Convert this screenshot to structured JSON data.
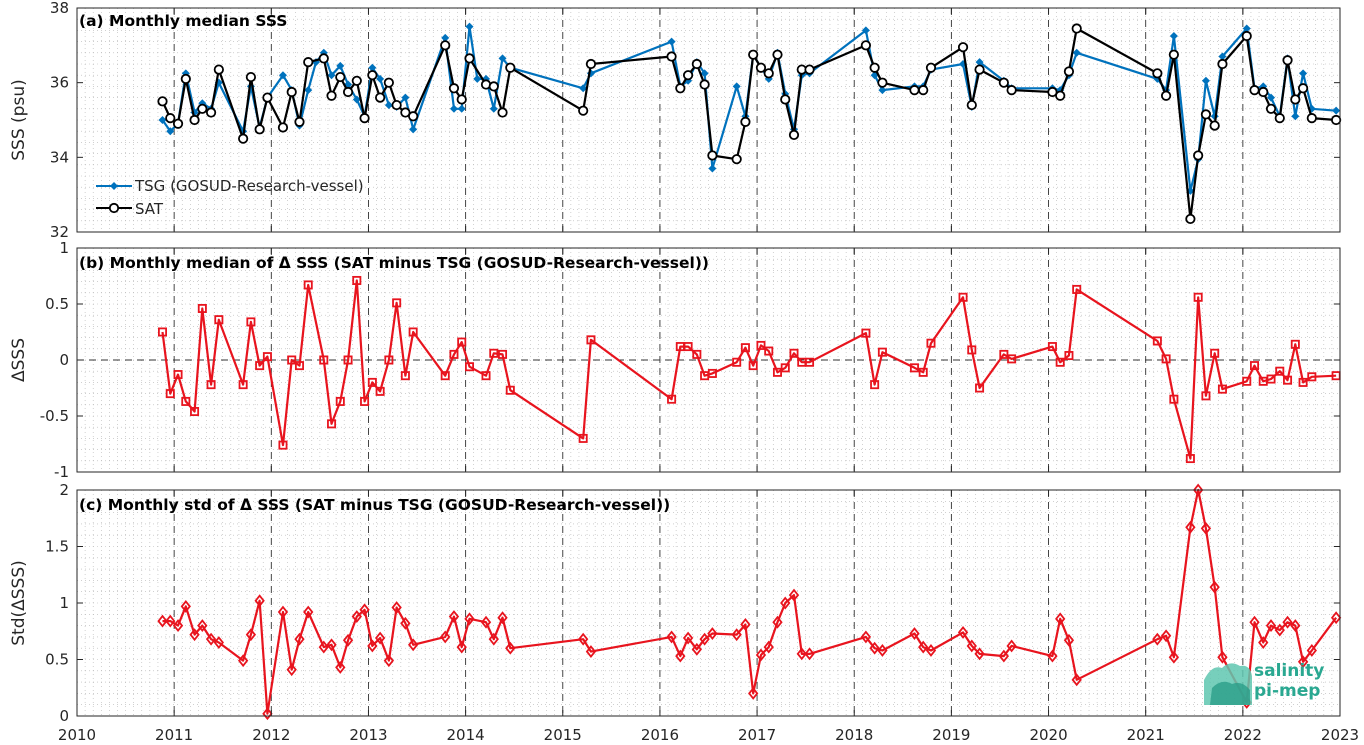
{
  "logo": {
    "line1": "salinity",
    "line2": "pi-mep"
  },
  "colors": {
    "tsg": "#0072bd",
    "sat": "#000000",
    "delta": "#e8141e",
    "grid": "#b4b4b4",
    "axis": "#262626"
  },
  "chart_data": [
    {
      "type": "line",
      "title": "(a) Monthly median SSS",
      "ylabel": "SSS (psu)",
      "xlim": [
        2010,
        2023
      ],
      "ylim": [
        32,
        38
      ],
      "yticks": [
        32,
        34,
        36,
        38
      ],
      "xticks": [
        2010,
        2011,
        2012,
        2013,
        2014,
        2015,
        2016,
        2017,
        2018,
        2019,
        2020,
        2021,
        2022,
        2023
      ],
      "legend_position": "lower-left",
      "series": [
        {
          "name": "TSG (GOSUD-Research-vessel)",
          "marker": "filled-diamond",
          "color": "#0072bd",
          "x": [
            2010.88,
            2010.96,
            2011.04,
            2011.12,
            2011.21,
            2011.29,
            2011.38,
            2011.46,
            2011.71,
            2011.79,
            2011.88,
            2011.96,
            2012.12,
            2012.21,
            2012.29,
            2012.38,
            2012.46,
            2012.54,
            2012.62,
            2012.71,
            2012.79,
            2012.88,
            2012.96,
            2013.04,
            2013.12,
            2013.21,
            2013.29,
            2013.38,
            2013.46,
            2013.79,
            2013.88,
            2013.96,
            2014.04,
            2014.12,
            2014.21,
            2014.29,
            2014.38,
            2014.46,
            2015.21,
            2015.29,
            2016.12,
            2016.21,
            2016.29,
            2016.38,
            2016.46,
            2016.54,
            2016.79,
            2016.88,
            2016.96,
            2017.04,
            2017.12,
            2017.21,
            2017.29,
            2017.38,
            2017.46,
            2017.54,
            2018.12,
            2018.21,
            2018.29,
            2018.62,
            2018.71,
            2018.79,
            2019.12,
            2019.21,
            2019.29,
            2019.54,
            2019.62,
            2020.04,
            2020.12,
            2020.21,
            2020.29,
            2021.12,
            2021.21,
            2021.29,
            2021.46,
            2021.54,
            2021.62,
            2021.71,
            2021.79,
            2022.04,
            2022.12,
            2022.21,
            2022.29,
            2022.38,
            2022.46,
            2022.54,
            2022.62,
            2022.71,
            2022.96
          ],
          "y": [
            35.0,
            34.7,
            34.9,
            36.25,
            35.2,
            35.45,
            35.3,
            36.0,
            34.7,
            35.9,
            34.8,
            35.6,
            36.2,
            35.8,
            34.85,
            35.8,
            36.55,
            36.8,
            36.2,
            36.45,
            35.95,
            35.55,
            35.1,
            36.4,
            36.1,
            35.4,
            35.35,
            35.6,
            34.75,
            37.2,
            35.3,
            35.3,
            37.5,
            36.1,
            36.1,
            35.3,
            36.65,
            36.4,
            35.85,
            36.25,
            37.1,
            35.9,
            36.05,
            36.55,
            36.25,
            33.7,
            35.9,
            35.1,
            36.75,
            36.4,
            36.1,
            36.8,
            35.7,
            34.75,
            36.2,
            36.25,
            37.4,
            36.2,
            35.8,
            35.9,
            35.9,
            36.35,
            36.5,
            35.35,
            36.55,
            36.05,
            35.85,
            35.85,
            35.8,
            36.2,
            36.8,
            36.1,
            35.8,
            37.25,
            33.1,
            33.95,
            36.05,
            35.1,
            36.7,
            37.45,
            35.85,
            35.9,
            35.6,
            35.1,
            36.65,
            35.1,
            36.25,
            35.3,
            35.25
          ]
        },
        {
          "name": "SAT",
          "marker": "open-circle",
          "color": "#000000",
          "x": [
            2010.88,
            2010.96,
            2011.04,
            2011.12,
            2011.21,
            2011.29,
            2011.38,
            2011.46,
            2011.71,
            2011.79,
            2011.88,
            2011.96,
            2012.12,
            2012.21,
            2012.29,
            2012.38,
            2012.54,
            2012.62,
            2012.71,
            2012.79,
            2012.88,
            2012.96,
            2013.04,
            2013.12,
            2013.21,
            2013.29,
            2013.38,
            2013.46,
            2013.79,
            2013.88,
            2013.96,
            2014.04,
            2014.21,
            2014.29,
            2014.38,
            2014.46,
            2015.21,
            2015.29,
            2016.12,
            2016.21,
            2016.29,
            2016.38,
            2016.46,
            2016.54,
            2016.79,
            2016.88,
            2016.96,
            2017.04,
            2017.12,
            2017.21,
            2017.29,
            2017.38,
            2017.46,
            2017.54,
            2018.12,
            2018.21,
            2018.29,
            2018.62,
            2018.71,
            2018.79,
            2019.12,
            2019.21,
            2019.29,
            2019.54,
            2019.62,
            2020.04,
            2020.12,
            2020.21,
            2020.29,
            2021.12,
            2021.21,
            2021.29,
            2021.46,
            2021.54,
            2021.62,
            2021.71,
            2021.79,
            2022.04,
            2022.12,
            2022.21,
            2022.29,
            2022.38,
            2022.46,
            2022.54,
            2022.62,
            2022.71,
            2022.96
          ],
          "y": [
            35.5,
            35.05,
            34.9,
            36.1,
            35.0,
            35.3,
            35.2,
            36.35,
            34.5,
            36.15,
            34.75,
            35.6,
            34.8,
            35.75,
            34.95,
            36.55,
            36.65,
            35.65,
            36.15,
            35.75,
            36.05,
            35.05,
            36.2,
            35.6,
            36.0,
            35.4,
            35.2,
            35.1,
            37.0,
            35.85,
            35.55,
            36.65,
            35.95,
            35.9,
            35.2,
            36.4,
            35.25,
            36.5,
            36.7,
            35.85,
            36.2,
            36.5,
            35.95,
            34.05,
            33.95,
            34.95,
            36.75,
            36.4,
            36.25,
            36.75,
            35.55,
            34.6,
            36.35,
            36.35,
            37.0,
            36.4,
            36.0,
            35.8,
            35.8,
            36.4,
            36.95,
            35.4,
            36.35,
            36.0,
            35.8,
            35.75,
            35.65,
            36.3,
            37.45,
            36.25,
            35.65,
            36.75,
            32.35,
            34.05,
            35.15,
            34.85,
            36.5,
            37.25,
            35.8,
            35.75,
            35.3,
            35.05,
            36.6,
            35.55,
            35.85,
            35.05,
            35.0
          ]
        }
      ]
    },
    {
      "type": "line",
      "title": "(b) Monthly median of Δ SSS (SAT minus TSG (GOSUD-Research-vessel))",
      "ylabel": "ΔSSS",
      "xlim": [
        2010,
        2023
      ],
      "ylim": [
        -1,
        1
      ],
      "yticks": [
        -1,
        -0.5,
        0,
        0.5,
        1
      ],
      "xticks": [
        2010,
        2011,
        2012,
        2013,
        2014,
        2015,
        2016,
        2017,
        2018,
        2019,
        2020,
        2021,
        2022,
        2023
      ],
      "zero_line": true,
      "series": [
        {
          "marker": "open-square",
          "color": "#e8141e",
          "x": [
            2010.88,
            2010.96,
            2011.04,
            2011.12,
            2011.21,
            2011.29,
            2011.38,
            2011.46,
            2011.71,
            2011.79,
            2011.88,
            2011.96,
            2012.12,
            2012.21,
            2012.29,
            2012.38,
            2012.54,
            2012.62,
            2012.71,
            2012.79,
            2012.88,
            2012.96,
            2013.04,
            2013.12,
            2013.21,
            2013.29,
            2013.38,
            2013.46,
            2013.79,
            2013.88,
            2013.96,
            2014.04,
            2014.21,
            2014.29,
            2014.38,
            2014.46,
            2015.21,
            2015.29,
            2016.12,
            2016.21,
            2016.29,
            2016.38,
            2016.46,
            2016.54,
            2016.79,
            2016.88,
            2016.96,
            2017.04,
            2017.12,
            2017.21,
            2017.29,
            2017.38,
            2017.46,
            2017.54,
            2018.12,
            2018.21,
            2018.29,
            2018.62,
            2018.71,
            2018.79,
            2019.12,
            2019.21,
            2019.29,
            2019.54,
            2019.62,
            2020.04,
            2020.12,
            2020.21,
            2020.29,
            2021.12,
            2021.21,
            2021.29,
            2021.46,
            2021.54,
            2021.62,
            2021.71,
            2021.79,
            2022.04,
            2022.12,
            2022.21,
            2022.29,
            2022.38,
            2022.46,
            2022.54,
            2022.62,
            2022.71,
            2022.96
          ],
          "y": [
            0.25,
            -0.3,
            -0.13,
            -0.37,
            -0.46,
            0.46,
            -0.22,
            0.36,
            -0.22,
            0.34,
            -0.05,
            0.03,
            -0.76,
            0.0,
            -0.05,
            0.67,
            0.0,
            -0.57,
            -0.37,
            0.0,
            0.71,
            -0.37,
            -0.2,
            -0.28,
            0.0,
            0.51,
            -0.14,
            0.25,
            -0.14,
            0.05,
            0.16,
            -0.06,
            -0.14,
            0.06,
            0.05,
            -0.27,
            -0.7,
            0.18,
            -0.35,
            0.12,
            0.12,
            0.05,
            -0.14,
            -0.12,
            -0.02,
            0.11,
            -0.05,
            0.13,
            0.08,
            -0.11,
            -0.07,
            0.06,
            -0.02,
            -0.02,
            0.24,
            -0.22,
            0.07,
            -0.07,
            -0.11,
            0.15,
            0.56,
            0.09,
            -0.25,
            0.05,
            0.01,
            0.12,
            -0.02,
            0.04,
            0.63,
            0.17,
            0.01,
            -0.35,
            -0.88,
            0.56,
            -0.32,
            0.06,
            -0.26,
            -0.19,
            -0.05,
            -0.19,
            -0.17,
            -0.1,
            -0.18,
            0.14,
            -0.2,
            -0.15,
            -0.14
          ]
        }
      ]
    },
    {
      "type": "line",
      "title": "(c) Monthly std of Δ SSS (SAT minus TSG (GOSUD-Research-vessel))",
      "ylabel": "Std(ΔSSS)",
      "xlim": [
        2010,
        2023
      ],
      "ylim": [
        0,
        2
      ],
      "yticks": [
        0,
        0.5,
        1,
        1.5,
        2
      ],
      "xticks": [
        2010,
        2011,
        2012,
        2013,
        2014,
        2015,
        2016,
        2017,
        2018,
        2019,
        2020,
        2021,
        2022,
        2023
      ],
      "series": [
        {
          "marker": "open-diamond",
          "color": "#e8141e",
          "x": [
            2010.88,
            2010.96,
            2011.04,
            2011.12,
            2011.21,
            2011.29,
            2011.38,
            2011.46,
            2011.71,
            2011.79,
            2011.88,
            2011.96,
            2012.12,
            2012.21,
            2012.29,
            2012.38,
            2012.54,
            2012.62,
            2012.71,
            2012.79,
            2012.88,
            2012.96,
            2013.04,
            2013.12,
            2013.21,
            2013.29,
            2013.38,
            2013.46,
            2013.79,
            2013.88,
            2013.96,
            2014.04,
            2014.21,
            2014.29,
            2014.38,
            2014.46,
            2015.21,
            2015.29,
            2016.12,
            2016.21,
            2016.29,
            2016.38,
            2016.46,
            2016.54,
            2016.79,
            2016.88,
            2016.96,
            2017.04,
            2017.12,
            2017.21,
            2017.29,
            2017.38,
            2017.46,
            2017.54,
            2018.12,
            2018.21,
            2018.29,
            2018.62,
            2018.71,
            2018.79,
            2019.12,
            2019.21,
            2019.29,
            2019.54,
            2019.62,
            2020.04,
            2020.12,
            2020.21,
            2020.29,
            2021.12,
            2021.21,
            2021.29,
            2021.46,
            2021.54,
            2021.62,
            2021.71,
            2021.79,
            2022.04,
            2022.12,
            2022.21,
            2022.29,
            2022.38,
            2022.46,
            2022.54,
            2022.62,
            2022.71,
            2022.96
          ],
          "y": [
            0.84,
            0.84,
            0.8,
            0.97,
            0.72,
            0.8,
            0.68,
            0.65,
            0.49,
            0.72,
            1.02,
            0.02,
            0.92,
            0.41,
            0.68,
            0.92,
            0.61,
            0.63,
            0.43,
            0.67,
            0.88,
            0.94,
            0.62,
            0.69,
            0.49,
            0.96,
            0.82,
            0.63,
            0.7,
            0.88,
            0.61,
            0.86,
            0.83,
            0.68,
            0.87,
            0.6,
            0.68,
            0.57,
            0.7,
            0.53,
            0.69,
            0.59,
            0.68,
            0.73,
            0.72,
            0.81,
            0.2,
            0.54,
            0.61,
            0.83,
            1.0,
            1.07,
            0.55,
            0.55,
            0.7,
            0.6,
            0.58,
            0.73,
            0.61,
            0.58,
            0.74,
            0.62,
            0.55,
            0.53,
            0.62,
            0.53,
            0.86,
            0.67,
            0.32,
            0.68,
            0.71,
            0.52,
            1.67,
            2.0,
            1.66,
            1.14,
            0.52,
            0.12,
            0.83,
            0.65,
            0.8,
            0.76,
            0.83,
            0.8,
            0.48,
            0.58,
            0.87
          ]
        }
      ]
    }
  ]
}
